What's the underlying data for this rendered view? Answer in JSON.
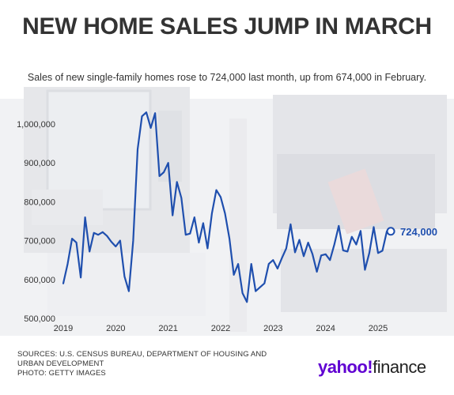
{
  "title": "NEW HOME SALES JUMP IN MARCH",
  "subtitle": "Sales of new single-family homes rose to 724,000 last month, up from 674,000 in February.",
  "footer": {
    "sources": "SOURCES: U.S. CENSUS BUREAU, DEPARTMENT OF HOUSING AND URBAN DEVELOPMENT",
    "photo": "PHOTO: GETTY IMAGES"
  },
  "logo": {
    "part1": "yahoo!",
    "part2": "finance"
  },
  "colors": {
    "line": "#1f4fae",
    "text": "#333333",
    "brand": "#6001d2"
  },
  "chart_data": {
    "type": "line",
    "title": "",
    "xlabel": "",
    "ylabel": "",
    "ylim": [
      500000,
      1000000
    ],
    "yticks": [
      500000,
      600000,
      700000,
      800000,
      900000,
      1000000
    ],
    "ytick_labels": [
      "500,000",
      "600,000",
      "700,000",
      "800,000",
      "900,000",
      "1,000,000"
    ],
    "xticks": [
      2019,
      2020,
      2021,
      2022,
      2023,
      2024,
      2025
    ],
    "xtick_labels": [
      "2019",
      "2020",
      "2021",
      "2022",
      "2023",
      "2024",
      "2025"
    ],
    "grid": false,
    "series": [
      {
        "x": [
          "2019-01",
          "2019-02",
          "2019-03",
          "2019-04",
          "2019-05",
          "2019-06",
          "2019-07",
          "2019-08",
          "2019-09",
          "2019-10",
          "2019-11",
          "2019-12",
          "2020-01",
          "2020-02",
          "2020-03",
          "2020-04",
          "2020-05",
          "2020-06",
          "2020-07",
          "2020-08",
          "2020-09",
          "2020-10",
          "2020-11",
          "2020-12",
          "2021-01",
          "2021-02",
          "2021-03",
          "2021-04",
          "2021-05",
          "2021-06",
          "2021-07",
          "2021-08",
          "2021-09",
          "2021-10",
          "2021-11",
          "2021-12",
          "2022-01",
          "2022-02",
          "2022-03",
          "2022-04",
          "2022-05",
          "2022-06",
          "2022-07",
          "2022-08",
          "2022-09",
          "2022-10",
          "2022-11",
          "2022-12",
          "2023-01",
          "2023-02",
          "2023-03",
          "2023-04",
          "2023-05",
          "2023-06",
          "2023-07",
          "2023-08",
          "2023-09",
          "2023-10",
          "2023-11",
          "2023-12",
          "2024-01",
          "2024-02",
          "2024-03",
          "2024-04",
          "2024-05",
          "2024-06",
          "2024-07",
          "2024-08",
          "2024-09",
          "2024-10",
          "2024-11",
          "2024-12",
          "2025-01",
          "2025-02",
          "2025-03"
        ],
        "values": [
          590000,
          640000,
          705000,
          695000,
          605000,
          760000,
          672000,
          720000,
          715000,
          722000,
          712000,
          697000,
          685000,
          700000,
          608000,
          570000,
          700000,
          935000,
          1020000,
          1030000,
          990000,
          1028000,
          866000,
          876000,
          900000,
          765000,
          851000,
          810000,
          715000,
          718000,
          760000,
          695000,
          745000,
          680000,
          770000,
          830000,
          812000,
          770000,
          705000,
          612000,
          640000,
          565000,
          542000,
          640000,
          570000,
          580000,
          590000,
          640000,
          650000,
          628000,
          655000,
          680000,
          742000,
          670000,
          702000,
          660000,
          695000,
          665000,
          620000,
          662000,
          665000,
          650000,
          690000,
          738000,
          675000,
          672000,
          710000,
          690000,
          725000,
          625000,
          668000,
          735000,
          668000,
          674000,
          724000
        ]
      }
    ],
    "annotations": [
      {
        "text": "724,000",
        "x": "2025-03",
        "y": 724000
      }
    ]
  }
}
